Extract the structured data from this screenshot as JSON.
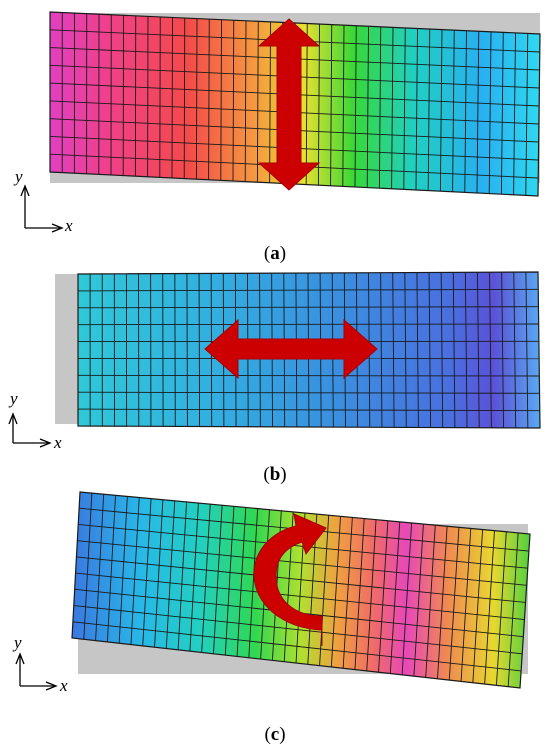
{
  "panels": [
    {
      "caption_open": "(",
      "caption_letter": "a",
      "caption_close": ")",
      "axis_x": "x",
      "axis_y": "y",
      "motion": "vertical translation"
    },
    {
      "caption_open": "(",
      "caption_letter": "b",
      "caption_close": ")",
      "axis_x": "x",
      "axis_y": "y",
      "motion": "horizontal translation"
    },
    {
      "caption_open": "(",
      "caption_letter": "c",
      "caption_close": ")",
      "axis_x": "x",
      "axis_y": "y",
      "motion": "rotation"
    }
  ],
  "colors": {
    "arrow": "#cc0000",
    "undeformed": "#c0c0c0",
    "mesh": "#1a1a1a"
  }
}
